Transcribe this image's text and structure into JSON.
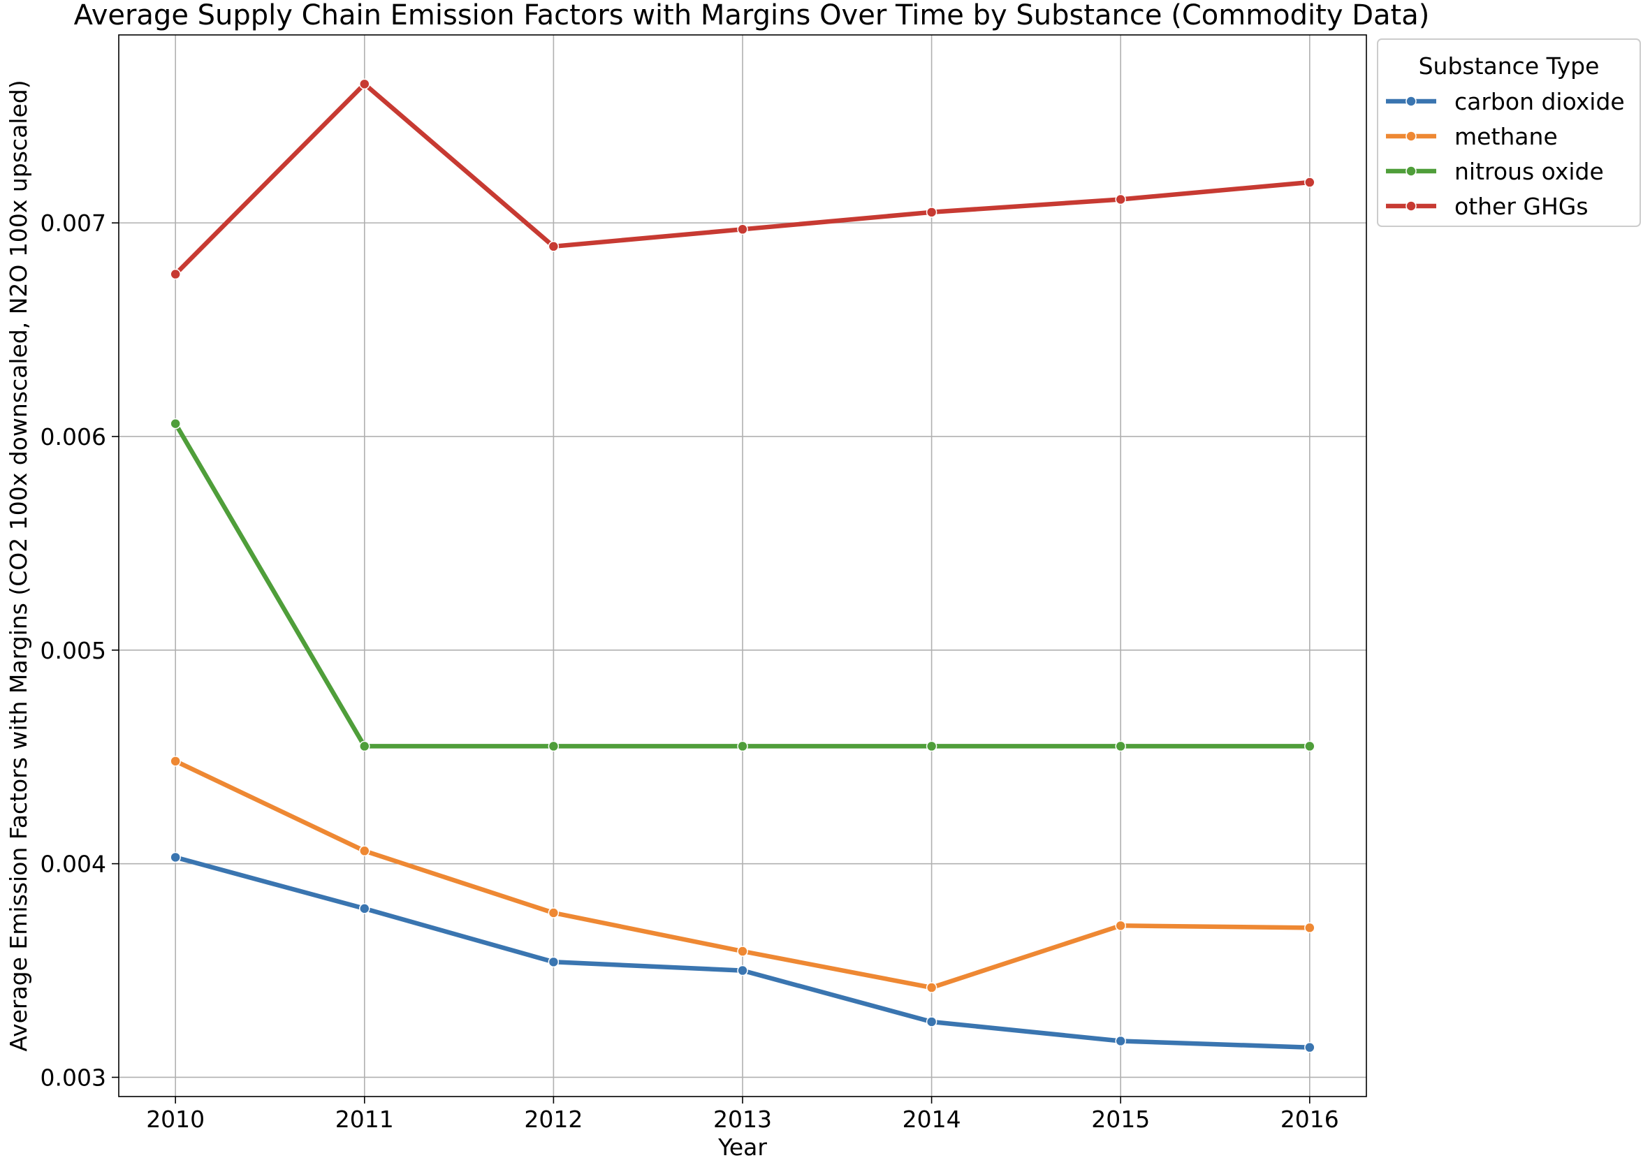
{
  "chart_data": {
    "type": "line",
    "title": "Average Supply Chain Emission Factors with Margins Over Time by Substance (Commodity Data)",
    "xlabel": "Year",
    "ylabel": "Average Emission Factors with Margins (CO2 100x downscaled, N2O 100x upscaled)",
    "x": [
      2010,
      2011,
      2012,
      2013,
      2014,
      2015,
      2016
    ],
    "x_tick_labels": [
      "2010",
      "2011",
      "2012",
      "2013",
      "2014",
      "2015",
      "2016"
    ],
    "xlim": [
      2009.7,
      2016.3
    ],
    "ylim": [
      0.00291,
      0.00788
    ],
    "y_ticks": [
      0.003,
      0.004,
      0.005,
      0.006,
      0.007
    ],
    "y_tick_labels": [
      "0.003",
      "0.004",
      "0.005",
      "0.006",
      "0.007"
    ],
    "grid": true,
    "legend": {
      "title": "Substance Type",
      "placement": "outside-top-right"
    },
    "series": [
      {
        "name": "carbon dioxide",
        "color": "#3a75b0",
        "values": [
          0.00403,
          0.00379,
          0.00354,
          0.0035,
          0.00326,
          0.00317,
          0.00314
        ]
      },
      {
        "name": "methane",
        "color": "#ee8833",
        "values": [
          0.00448,
          0.00406,
          0.00377,
          0.00359,
          0.00342,
          0.00371,
          0.0037
        ]
      },
      {
        "name": "nitrous oxide",
        "color": "#4f9e3a",
        "values": [
          0.00606,
          0.00455,
          0.00455,
          0.00455,
          0.00455,
          0.00455,
          0.00455
        ]
      },
      {
        "name": "other GHGs",
        "color": "#c73a32",
        "values": [
          0.00676,
          0.00765,
          0.00689,
          0.00697,
          0.00705,
          0.00711,
          0.00719
        ]
      }
    ]
  }
}
